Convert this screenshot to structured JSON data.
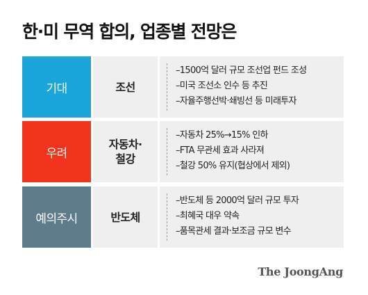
{
  "title": "한·미 무역 합의, 업종별 전망은",
  "rows": [
    {
      "label": "기대",
      "label_color": "#1aa6da",
      "sector_lines": [
        "조선"
      ],
      "items": [
        "–1500억 달러 규모 조선업 펀드 조성",
        "–미국 조선소 인수 등 추진",
        "–자율주행선박·쇄빙선 등 미래투자"
      ]
    },
    {
      "label": "우려",
      "label_color": "#f1341b",
      "sector_lines": [
        "자동차·",
        "철강"
      ],
      "items": [
        "–자동차 25%→15% 인하",
        "–FTA 무관세 효과 사라져",
        "–철강 50% 유지(협상에서 제외)"
      ]
    },
    {
      "label": "예의주시",
      "label_color": "#5e7d8c",
      "sector_lines": [
        "반도체"
      ],
      "items": [
        "–반도체 등 2000억 달러 규모 투자",
        "–최혜국 대우 약속",
        "–품목관세 결과·보조금 규모 변수"
      ]
    }
  ],
  "brand": "The JoongAng"
}
